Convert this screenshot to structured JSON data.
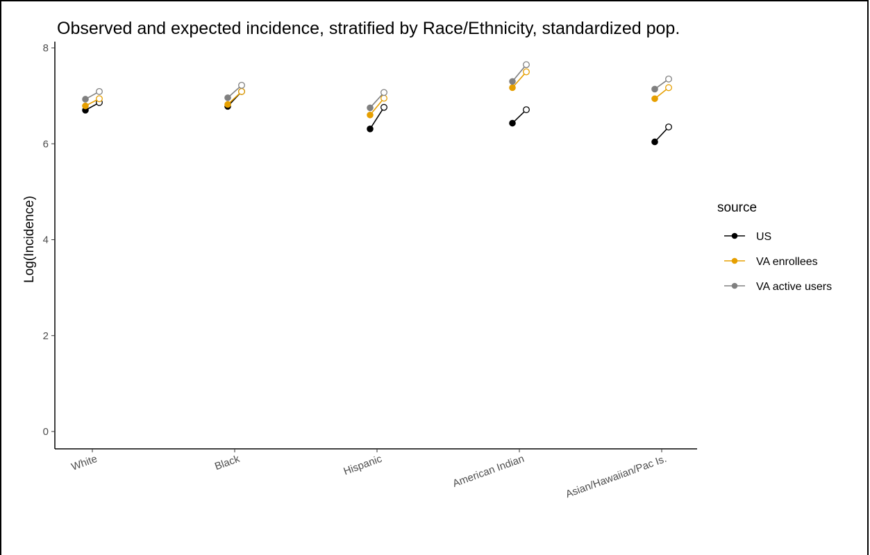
{
  "chart_data": {
    "type": "line",
    "title": "Observed and expected incidence, stratified by Race/Ethnicity, standardized pop.",
    "xlabel": "",
    "ylabel": "Log(Incidence)",
    "ylim": [
      0,
      8
    ],
    "yticks": [
      0,
      2,
      4,
      6,
      8
    ],
    "categories": [
      "White",
      "Black",
      "Hispanic",
      "American Indian",
      "Asian/Hawaiian/Pac Is."
    ],
    "point_types": [
      "observed (filled)",
      "expected (open)"
    ],
    "series": [
      {
        "name": "US",
        "color": "#000000",
        "observed": [
          6.7,
          6.78,
          6.31,
          6.43,
          6.04
        ],
        "expected": [
          6.86,
          7.09,
          6.76,
          6.71,
          6.35
        ]
      },
      {
        "name": "VA enrollees",
        "color": "#E69F00",
        "observed": [
          6.79,
          6.82,
          6.6,
          7.17,
          6.94
        ],
        "expected": [
          6.94,
          7.09,
          6.95,
          7.5,
          7.17
        ]
      },
      {
        "name": "VA active users",
        "color": "#808080",
        "observed": [
          6.93,
          6.96,
          6.75,
          7.3,
          7.14
        ],
        "expected": [
          7.09,
          7.22,
          7.07,
          7.65,
          7.35
        ]
      }
    ],
    "legend": {
      "title": "source",
      "placement": "right"
    },
    "grid": false
  }
}
